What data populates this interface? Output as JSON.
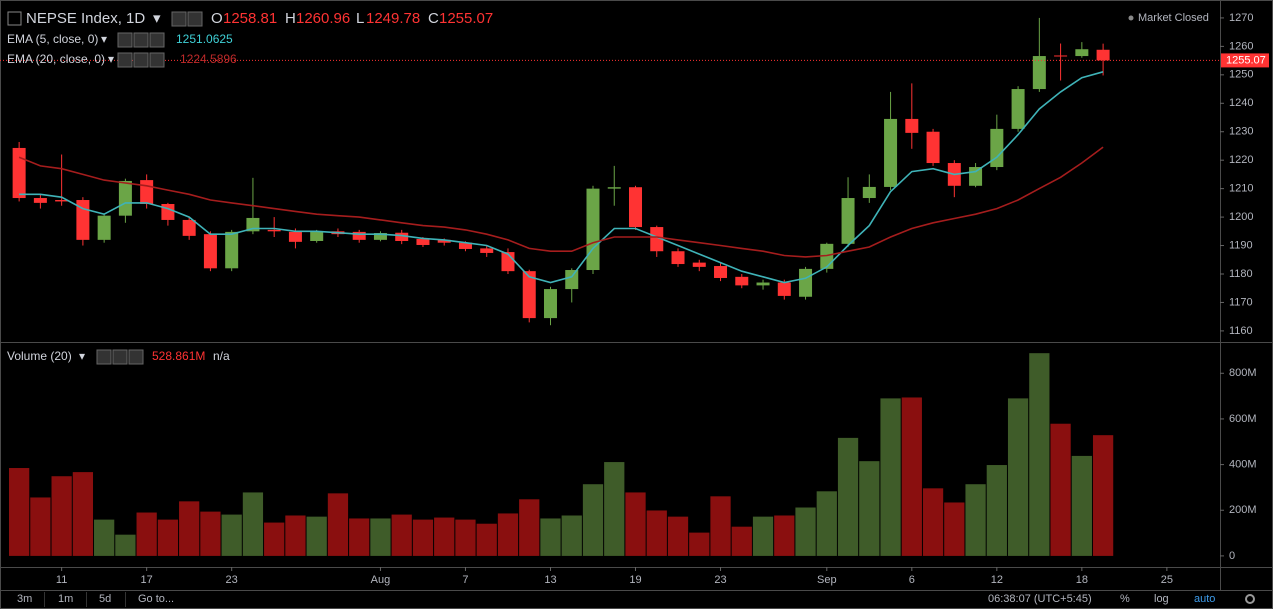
{
  "header": {
    "symbol": "NEPSE Index, 1D",
    "o_label": "O",
    "h_label": "H",
    "l_label": "L",
    "c_label": "C",
    "market_status": "Market Closed"
  },
  "chart_data": [
    {
      "type": "candlestick",
      "xticks": [
        {
          "value": 2,
          "label": "11"
        },
        {
          "value": 6,
          "label": "17"
        },
        {
          "value": 10,
          "label": "23"
        },
        {
          "value": 17,
          "label": "Aug"
        },
        {
          "value": 21,
          "label": "7"
        },
        {
          "value": 25,
          "label": "13"
        },
        {
          "value": 29,
          "label": "19"
        },
        {
          "value": 33,
          "label": "23"
        },
        {
          "value": 38,
          "label": "Sep"
        },
        {
          "value": 42,
          "label": "6"
        },
        {
          "value": 46,
          "label": "12"
        },
        {
          "value": 50,
          "label": "18"
        },
        {
          "value": 54,
          "label": "25"
        }
      ],
      "xlim": [
        -0.9,
        56.5
      ],
      "ylim": [
        1156.1,
        1276.3
      ],
      "yticks": [
        1160,
        1170,
        1180,
        1190,
        1200,
        1210,
        1220,
        1230,
        1240,
        1250,
        1260,
        1270
      ],
      "up_color": "#6ba547",
      "down_color": "#ff3333",
      "grid": false,
      "open": [
        1224.3,
        1206.7,
        1206,
        1206,
        1192,
        1200.5,
        1213,
        1204.6,
        1199,
        1194,
        1182,
        1195,
        1195.5,
        1194.8,
        1191.6,
        1195,
        1194.8,
        1192,
        1194.5,
        1192.3,
        1192,
        1191,
        1189,
        1187.7,
        1181,
        1164.5,
        1174.7,
        1181.4,
        1210,
        1210.5,
        1196.5,
        1188,
        1184,
        1182.8,
        1179,
        1176,
        1177,
        1172,
        1181.8,
        1190.6,
        1206.7,
        1210.6,
        1234.5,
        1230,
        1219,
        1211,
        1217.6,
        1231,
        1245,
        1256.8,
        1256.6,
        1258.81
      ],
      "high": [
        1226.4,
        1208,
        1222,
        1207,
        1201,
        1213.5,
        1215,
        1205,
        1200,
        1195,
        1195.5,
        1213.8,
        1200,
        1196,
        1195.5,
        1196,
        1195.5,
        1195,
        1195.5,
        1193,
        1192.5,
        1191.5,
        1190,
        1189,
        1181.5,
        1175.5,
        1182,
        1211,
        1218,
        1211,
        1197,
        1189,
        1185,
        1184,
        1180,
        1178,
        1178,
        1182.5,
        1191,
        1214,
        1215,
        1244,
        1247,
        1231,
        1220,
        1219,
        1236,
        1246,
        1270,
        1261,
        1261.5,
        1260.96
      ],
      "low": [
        1205.5,
        1203,
        1204,
        1190,
        1191,
        1198,
        1203,
        1197,
        1192,
        1181,
        1181,
        1194,
        1193,
        1189,
        1191,
        1193,
        1191,
        1191.5,
        1190.5,
        1189.5,
        1190,
        1188,
        1186,
        1180,
        1163,
        1162,
        1170,
        1180,
        1204,
        1195.5,
        1186,
        1182.5,
        1181,
        1177.5,
        1175,
        1174.5,
        1171,
        1171,
        1180.5,
        1189.5,
        1205,
        1209.5,
        1224,
        1218,
        1207,
        1210.5,
        1216.5,
        1230,
        1244,
        1248,
        1256,
        1249.78
      ],
      "close": [
        1206.7,
        1205,
        1205.5,
        1192,
        1200.5,
        1212.7,
        1204.6,
        1199,
        1193.4,
        1182,
        1194.8,
        1199.7,
        1195,
        1191.3,
        1194.8,
        1194,
        1192,
        1194.4,
        1191.6,
        1190.2,
        1191,
        1188.8,
        1187.4,
        1181,
        1164.5,
        1174.7,
        1181.4,
        1210,
        1210.5,
        1196.5,
        1188,
        1183.5,
        1182.5,
        1178.6,
        1176,
        1177,
        1172.3,
        1181.8,
        1190.6,
        1206.7,
        1210.6,
        1234.5,
        1229.6,
        1219,
        1211,
        1217.6,
        1231,
        1245,
        1256.6,
        1256.6,
        1259,
        1255.07
      ],
      "series": [
        {
          "name": "EMA (5, close, 0)",
          "color": "#3fb3b8",
          "values": [
            1208,
            1208,
            1207,
            1203,
            1201,
            1205,
            1205,
            1203,
            1200,
            1194,
            1194,
            1196,
            1196,
            1195,
            1195,
            1194.5,
            1194,
            1194,
            1193.5,
            1192.5,
            1192,
            1191,
            1190,
            1187,
            1179,
            1177,
            1179,
            1189,
            1196,
            1196,
            1193,
            1190,
            1187,
            1184,
            1181,
            1179,
            1177,
            1178.5,
            1182.5,
            1190,
            1197,
            1209,
            1216,
            1217,
            1215,
            1216,
            1221,
            1229,
            1238,
            1244,
            1249,
            1251.0625
          ]
        },
        {
          "name": "EMA (20, close, 0)",
          "color": "#a51d1d",
          "values": [
            1221,
            1218,
            1217,
            1215,
            1213,
            1212,
            1211,
            1209.5,
            1208,
            1206,
            1205,
            1204,
            1203,
            1202,
            1201,
            1200.5,
            1200,
            1199,
            1198,
            1197,
            1196.5,
            1195.5,
            1194,
            1192,
            1189,
            1188,
            1188,
            1191,
            1193,
            1193,
            1193,
            1192,
            1191,
            1190,
            1189,
            1188,
            1186.5,
            1186,
            1186.5,
            1188,
            1189.5,
            1193,
            1196,
            1198,
            1199.5,
            1201,
            1203,
            1206,
            1210,
            1214,
            1219,
            1224.5896
          ]
        }
      ]
    },
    {
      "type": "bar",
      "name": "Volume (20)",
      "last_label": "528.861M",
      "extra": "n/a",
      "up_color": "#3f5c29",
      "down_color": "#8a0f0f",
      "ylim": [
        -48.6,
        932.6
      ],
      "yticks": [
        0,
        {
          "value": 200,
          "label": "200M"
        },
        {
          "value": 400,
          "label": "400M"
        },
        {
          "value": 600,
          "label": "600M"
        },
        {
          "value": 800,
          "label": "800M"
        }
      ],
      "values": [
        385,
        256,
        349,
        367,
        159,
        93,
        190,
        159,
        239,
        194,
        181,
        278,
        146,
        177,
        172,
        274,
        164,
        164,
        181,
        159,
        168,
        159,
        141,
        186,
        248,
        164,
        177,
        314,
        411,
        278,
        199,
        172,
        102,
        261,
        128,
        172,
        177,
        212,
        283,
        517,
        415,
        690,
        694,
        296,
        234,
        314,
        398,
        690,
        888,
        579,
        438,
        528.861
      ]
    }
  ],
  "toolbar": {
    "ranges": [
      "3m",
      "1m",
      "5d"
    ],
    "goto": "Go to...",
    "time": "06:38:07 (UTC+5:45)",
    "percent": "%",
    "log": "log",
    "auto": "auto"
  }
}
